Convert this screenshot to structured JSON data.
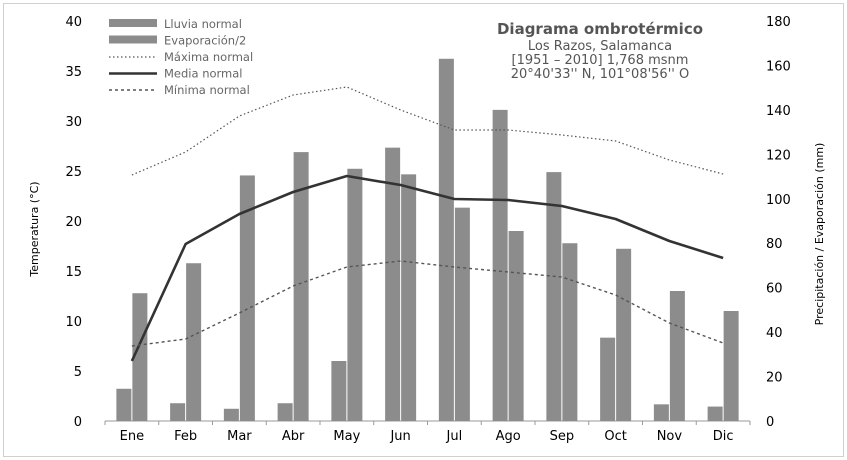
{
  "chart_data": {
    "type": "bar",
    "title": "Diagrama ombrotérmico",
    "subtitle_lines": [
      "Los Razos, Salamanca",
      "[1951 – 2010] 1,768 msnm",
      "20°40'33'' N, 101°08'56'' O"
    ],
    "categories": [
      "Ene",
      "Feb",
      "Mar",
      "Abr",
      "May",
      "Jun",
      "Jul",
      "Ago",
      "Sep",
      "Oct",
      "Nov",
      "Dic"
    ],
    "ylabel_left": "Temperatura (°C)",
    "ylabel_right": "Precipitación / Evaporación (mm)",
    "ylim_left": [
      0,
      40
    ],
    "ylim_right": [
      0,
      180
    ],
    "yticks_left": [
      "0",
      "5",
      "10",
      "15",
      "20",
      "25",
      "30",
      "35",
      "40"
    ],
    "yticks_right": [
      "0",
      "20",
      "40",
      "60",
      "80",
      "100",
      "120",
      "140",
      "160",
      "180"
    ],
    "legend_position": "top-left",
    "bar_series": [
      {
        "name": "Lluvia normal",
        "axis": "right",
        "color": "#8c8c8c",
        "values": [
          14.5,
          8,
          5.5,
          8,
          27,
          123,
          163,
          140,
          112,
          37.5,
          7.5,
          6.5
        ]
      },
      {
        "name": "Evaporación/2",
        "axis": "right",
        "color": "#8c8c8c",
        "values": [
          57.5,
          71,
          110.5,
          121,
          113.5,
          111,
          96,
          85.5,
          80,
          77.5,
          58.5,
          49.5
        ]
      }
    ],
    "line_series": [
      {
        "name": "Máxima normal",
        "axis": "left",
        "style": "dotted",
        "color": "#555555",
        "values": [
          24.6,
          26.9,
          30.5,
          32.6,
          33.4,
          31.1,
          29.1,
          29.1,
          28.6,
          28.0,
          26.1,
          24.7
        ]
      },
      {
        "name": "Media normal",
        "axis": "left",
        "style": "solid",
        "color": "#333333",
        "values": [
          6.0,
          17.7,
          20.7,
          22.9,
          24.5,
          23.6,
          22.2,
          22.1,
          21.5,
          20.2,
          18.0,
          16.3
        ]
      },
      {
        "name": "Mínima normal",
        "axis": "left",
        "style": "dashed",
        "color": "#555555",
        "values": [
          7.5,
          8.2,
          10.8,
          13.5,
          15.4,
          16.0,
          15.4,
          14.9,
          14.4,
          12.6,
          9.8,
          7.8
        ]
      }
    ]
  }
}
